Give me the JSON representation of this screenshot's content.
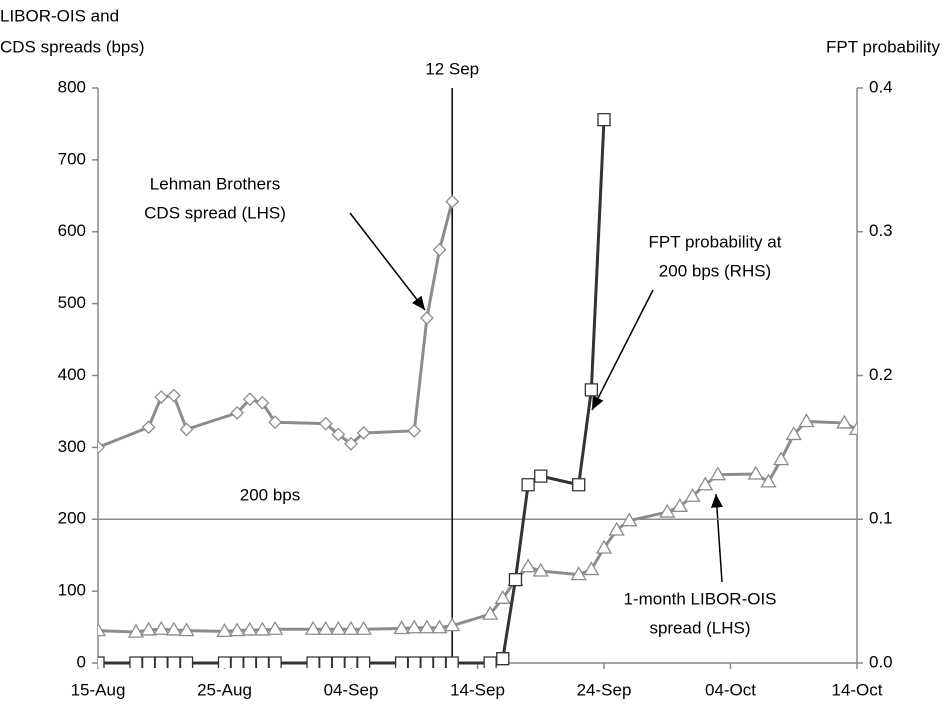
{
  "chart_data": {
    "type": "line",
    "ylabel": [
      "LIBOR-OIS and",
      "CDS spreads (bps)"
    ],
    "y2label": "FPT probability",
    "xlim": [
      0,
      60
    ],
    "xticks": [
      {
        "value": 0,
        "label": "15-Aug"
      },
      {
        "value": 10,
        "label": "25-Aug"
      },
      {
        "value": 20,
        "label": "04-Sep"
      },
      {
        "value": 30,
        "label": "14-Sep"
      },
      {
        "value": 40,
        "label": "24-Sep"
      },
      {
        "value": 50,
        "label": "04-Oct"
      },
      {
        "value": 60,
        "label": "14-Oct"
      }
    ],
    "ylim": [
      0,
      800
    ],
    "yticks": [
      0,
      100,
      200,
      300,
      400,
      500,
      600,
      700,
      800
    ],
    "y2lim": [
      0,
      0.4
    ],
    "y2ticks": [
      {
        "value": 0,
        "label": "0.0"
      },
      0.1,
      0.2,
      0.3,
      0.4
    ],
    "series": [
      {
        "marker": "diamond",
        "color": "#8c8c8c",
        "x": [
          0,
          4,
          5,
          6,
          7,
          11,
          12,
          13,
          14,
          18,
          19,
          20,
          21,
          25,
          26,
          27,
          28
        ],
        "values": [
          300,
          328,
          370,
          372,
          325,
          348,
          367,
          362,
          335,
          333,
          318,
          305,
          320,
          323,
          480,
          575,
          642
        ]
      },
      {
        "marker": "triangle",
        "color": "#8c8c8c",
        "x": [
          0,
          3,
          4,
          5,
          6,
          7,
          10,
          11,
          12,
          13,
          14,
          17,
          18,
          19,
          20,
          21,
          24,
          25,
          26,
          27,
          28,
          31,
          32,
          33,
          34,
          35,
          38,
          39,
          40,
          41,
          42,
          45,
          46,
          47,
          48,
          49,
          52,
          53,
          54,
          55,
          56,
          59,
          60
        ],
        "values": [
          45,
          43,
          46,
          47,
          46,
          45,
          44,
          45,
          46,
          46,
          47,
          47,
          47,
          47,
          47,
          47,
          48,
          49,
          49,
          49,
          52,
          68,
          90,
          115,
          134,
          128,
          123,
          130,
          160,
          185,
          198,
          210,
          218,
          232,
          248,
          262,
          263,
          252,
          283,
          318,
          336,
          334,
          325
        ]
      },
      {
        "marker": "square",
        "color": "#333333",
        "axis": "y2",
        "x": [
          0,
          3,
          4,
          5,
          6,
          7,
          10,
          11,
          12,
          13,
          14,
          17,
          18,
          19,
          20,
          21,
          24,
          25,
          26,
          27,
          28,
          31,
          32,
          33,
          34,
          35,
          38,
          39,
          40
        ],
        "values": [
          0,
          0,
          0,
          0,
          0,
          0,
          0,
          0,
          0,
          0,
          0,
          0,
          0,
          0,
          0,
          0,
          0,
          0,
          0,
          0,
          0,
          0,
          0.003,
          0.058,
          0.124,
          0.13,
          0.124,
          0.19,
          0.378
        ]
      }
    ],
    "annotations": [
      {
        "text": [
          "Lehman Brothers",
          "CDS spread (LHS)"
        ]
      },
      {
        "text": [
          "FPT probability at",
          "200 bps (RHS)"
        ]
      },
      {
        "text": [
          "1-month LIBOR-OIS",
          "spread (LHS)"
        ]
      }
    ],
    "vline": {
      "x": 28,
      "label": "12 Sep"
    },
    "hline": {
      "y": 200,
      "label": "200 bps"
    }
  }
}
